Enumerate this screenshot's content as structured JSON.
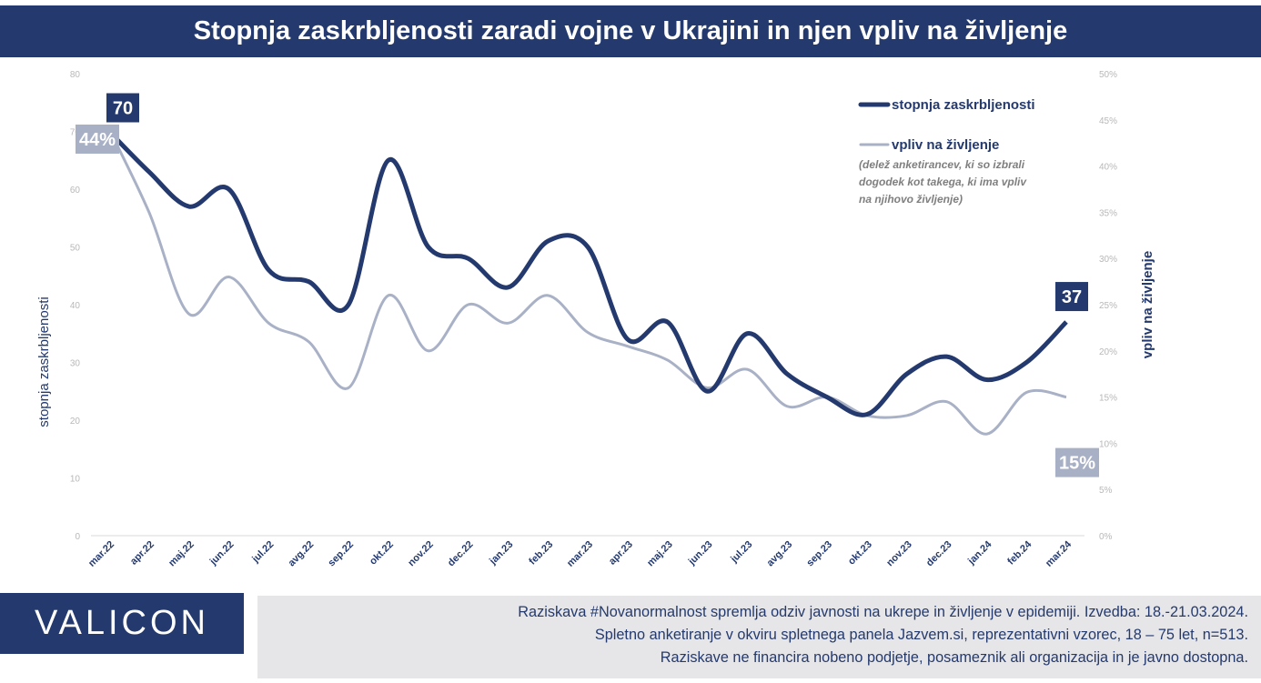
{
  "title": "Stopnja zaskrbljenosti zaradi vojne v Ukrajini in njen vpliv na življenje",
  "logo": "VALICON",
  "footer": {
    "line1": "Raziskava #Novanormalnost spremlja odziv javnosti na ukrepe in življenje v epidemiji. Izvedba: 18.-21.03.2024.",
    "line2": "Spletno anketiranje v okviru spletnega panela Jazvem.si, reprezentativni vzorec, 18 – 75 let, n=513.",
    "line3": "Raziskave ne financira nobeno podjetje, posameznik ali organizacija in je javno dostopna."
  },
  "colors": {
    "primary": "#243a6e",
    "secondary": "#a9b1c6",
    "label_secondary": "#a7b0c5",
    "tick": "#b8b8b8"
  },
  "chart_data": {
    "type": "line",
    "categories": [
      "mar.22",
      "apr.22",
      "maj.22",
      "jun.22",
      "jul.22",
      "avg.22",
      "sep.22",
      "okt.22",
      "nov.22",
      "dec.22",
      "jan.23",
      "feb.23",
      "mar.23",
      "apr.23",
      "maj.23",
      "jun.23",
      "jul.23",
      "avg.23",
      "sep.23",
      "okt.23",
      "nov.23",
      "dec.23",
      "jan.24",
      "feb.24",
      "mar.24"
    ],
    "ylabel": "stopnja zaskrbljenosti",
    "y2label": "vpliv na življenje",
    "ylim": [
      0,
      80
    ],
    "y2lim": [
      0,
      50
    ],
    "yticks": [
      "0",
      "10",
      "20",
      "30",
      "40",
      "50",
      "60",
      "70",
      "80"
    ],
    "y2ticks": [
      "0%",
      "5%",
      "10%",
      "15%",
      "20%",
      "25%",
      "30%",
      "35%",
      "40%",
      "45%",
      "50%"
    ],
    "series": [
      {
        "name": "stopnja zaskrbljenosti",
        "axis": "left",
        "values": [
          70,
          63,
          57,
          60,
          46,
          44,
          40,
          65,
          50,
          48,
          43,
          51,
          50,
          34,
          37,
          25,
          35,
          28,
          24,
          21,
          28,
          31,
          27,
          30,
          37
        ]
      },
      {
        "name": "vpliv na življenje",
        "axis": "right",
        "values": [
          44,
          35,
          24,
          28,
          23,
          21,
          16,
          26,
          20,
          25,
          23,
          26,
          22,
          20.5,
          19,
          16,
          18,
          14,
          15,
          13,
          13,
          14.5,
          11,
          15.5,
          15
        ]
      }
    ],
    "legend": {
      "position": "top-right",
      "note": "(delež anketirancev, ki so izbrali dogodek kot takega, ki ima vpliv na njihovo življenje)"
    },
    "annotations": [
      {
        "text": "70",
        "series": 0,
        "index": 0
      },
      {
        "text": "44%",
        "series": 1,
        "index": 0
      },
      {
        "text": "37",
        "series": 0,
        "index": 24
      },
      {
        "text": "15%",
        "series": 1,
        "index": 24
      }
    ]
  }
}
